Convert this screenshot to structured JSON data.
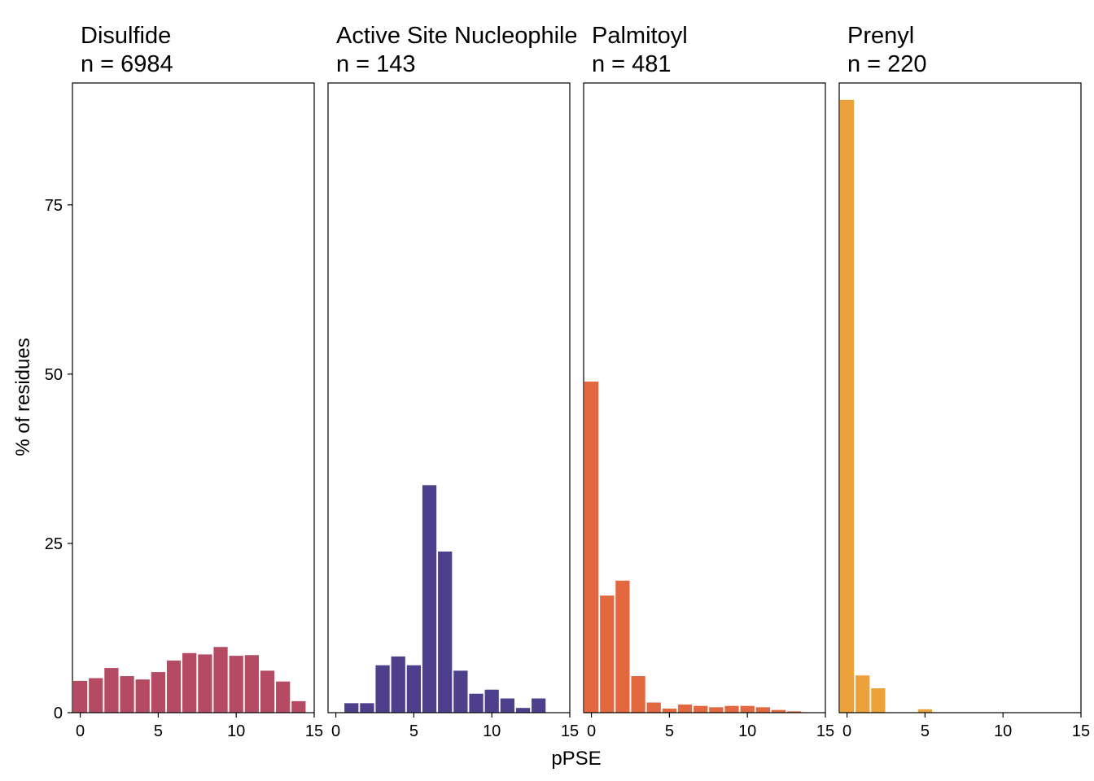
{
  "chart_data": {
    "type": "bar",
    "xlabel": "pPSE",
    "ylabel": "% of residues",
    "xlim": [
      -0.5,
      15
    ],
    "ylim": [
      0,
      93
    ],
    "x_ticks": [
      0,
      5,
      10,
      15
    ],
    "y_ticks": [
      0,
      25,
      50,
      75
    ],
    "grid": false,
    "facets": [
      {
        "title": "Disulfide",
        "subtitle": "n = 6984",
        "color": "#b54b62",
        "x": [
          0,
          1,
          2,
          3,
          4,
          5,
          6,
          7,
          8,
          9,
          10,
          11,
          12,
          13,
          14
        ],
        "values": [
          4.7,
          5.1,
          6.6,
          5.4,
          4.9,
          6.0,
          7.7,
          8.8,
          8.6,
          9.7,
          8.4,
          8.5,
          6.2,
          4.6,
          1.7
        ]
      },
      {
        "title": "Active Site Nucleophile",
        "subtitle": "n = 143",
        "color": "#4e3f8c",
        "x": [
          1,
          2,
          3,
          4,
          5,
          6,
          7,
          8,
          9,
          10,
          11,
          12,
          13
        ],
        "values": [
          1.4,
          1.4,
          7.0,
          8.3,
          7.0,
          33.6,
          23.8,
          6.2,
          2.8,
          3.4,
          2.1,
          0.7,
          2.1
        ]
      },
      {
        "title": "Palmitoyl",
        "subtitle": "n = 481",
        "color": "#e3683f",
        "x": [
          0,
          1,
          2,
          3,
          4,
          5,
          6,
          7,
          8,
          9,
          10,
          11,
          12,
          13
        ],
        "values": [
          48.9,
          17.3,
          19.5,
          5.4,
          1.5,
          0.6,
          1.2,
          1.0,
          0.8,
          1.0,
          1.0,
          0.8,
          0.4,
          0.2
        ]
      },
      {
        "title": "Prenyl",
        "subtitle": "n = 220",
        "color": "#eba23a",
        "x": [
          0,
          1,
          2,
          5
        ],
        "values": [
          90.5,
          5.5,
          3.6,
          0.5
        ]
      }
    ]
  }
}
